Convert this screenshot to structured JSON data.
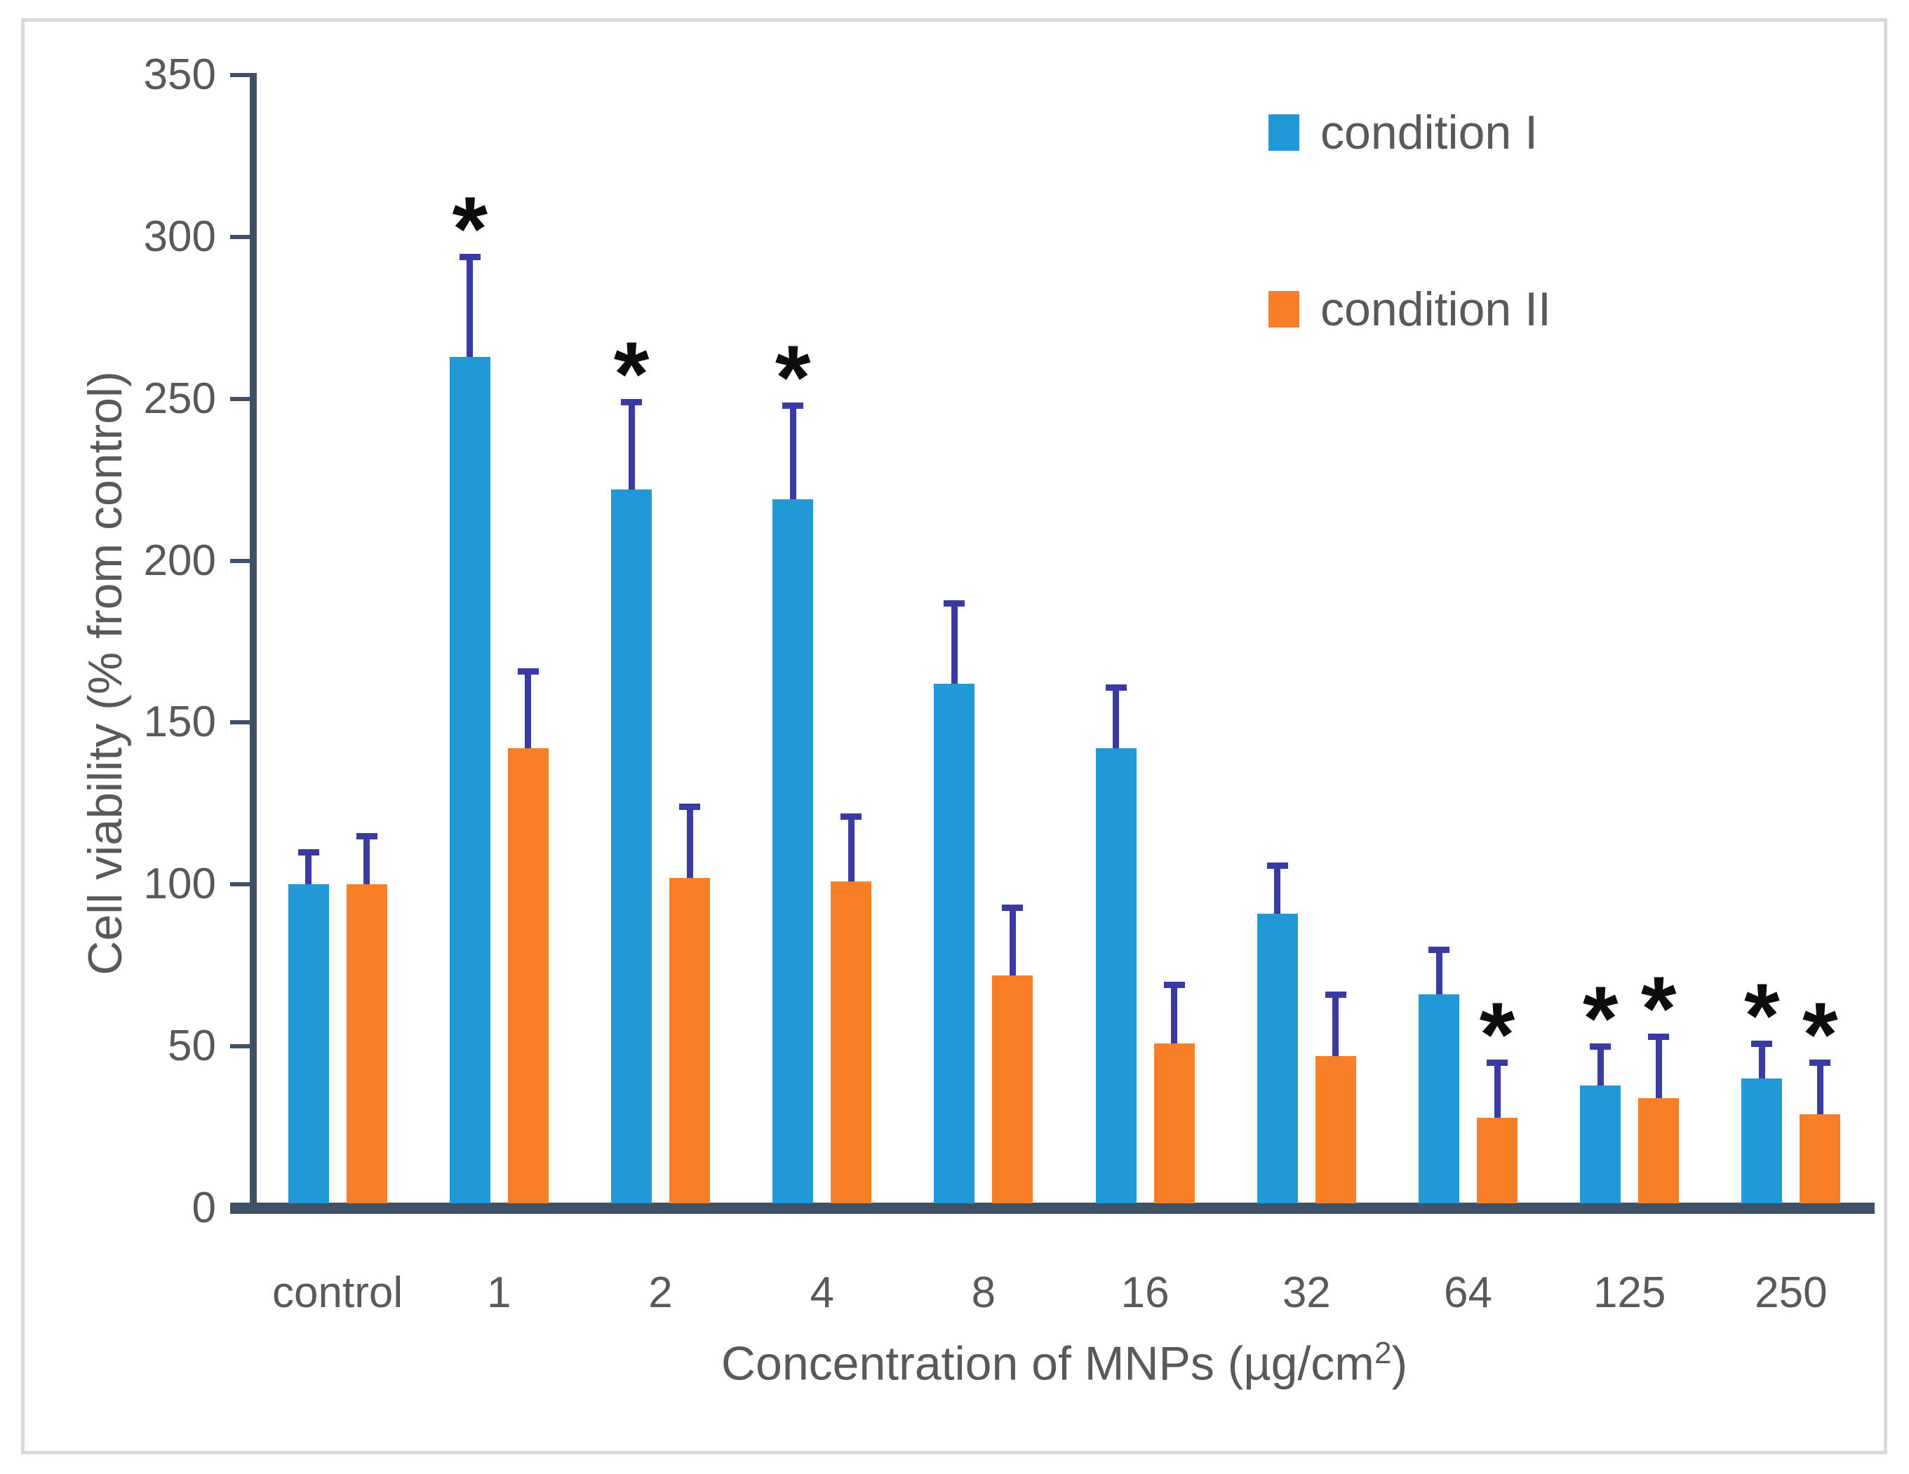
{
  "chart_data": {
    "type": "bar",
    "title": "",
    "ylabel": "Cell viability (% from control)",
    "xlabel": "Concentration of MNPs (µg/cm²)",
    "xlabel_parts": {
      "pre": "Concentration of MNPs (µg/cm",
      "sup": "2",
      "post": ")"
    },
    "ylim": [
      0,
      350
    ],
    "ytick_step": 50,
    "ytick_labels": [
      "0",
      "50",
      "100",
      "150",
      "200",
      "250",
      "300",
      "350"
    ],
    "grid": false,
    "legend_position": "top-right",
    "categories": [
      "control",
      "1",
      "2",
      "4",
      "8",
      "16",
      "32",
      "64",
      "125",
      "250"
    ],
    "series": [
      {
        "name": "condition I",
        "color": "#2199d7",
        "values": [
          100,
          263,
          222,
          219,
          162,
          142,
          91,
          66,
          38,
          40
        ],
        "error_plus": [
          10,
          31,
          27,
          29,
          25,
          19,
          15,
          14,
          12,
          11
        ],
        "significant": [
          false,
          true,
          true,
          true,
          false,
          false,
          false,
          false,
          true,
          true
        ]
      },
      {
        "name": "condition II",
        "color": "#f97e28",
        "values": [
          100,
          142,
          102,
          101,
          72,
          51,
          47,
          28,
          34,
          29
        ],
        "error_plus": [
          15,
          24,
          22,
          20,
          21,
          18,
          19,
          17,
          19,
          16
        ],
        "significant": [
          false,
          false,
          false,
          false,
          false,
          false,
          false,
          true,
          true,
          true
        ]
      }
    ],
    "significance_marker": "*",
    "error_bar_color": "#3a3aa3",
    "axis_color": "#3f5166",
    "text_color": "#595959",
    "frame_border_color": "#d9d9d9"
  }
}
